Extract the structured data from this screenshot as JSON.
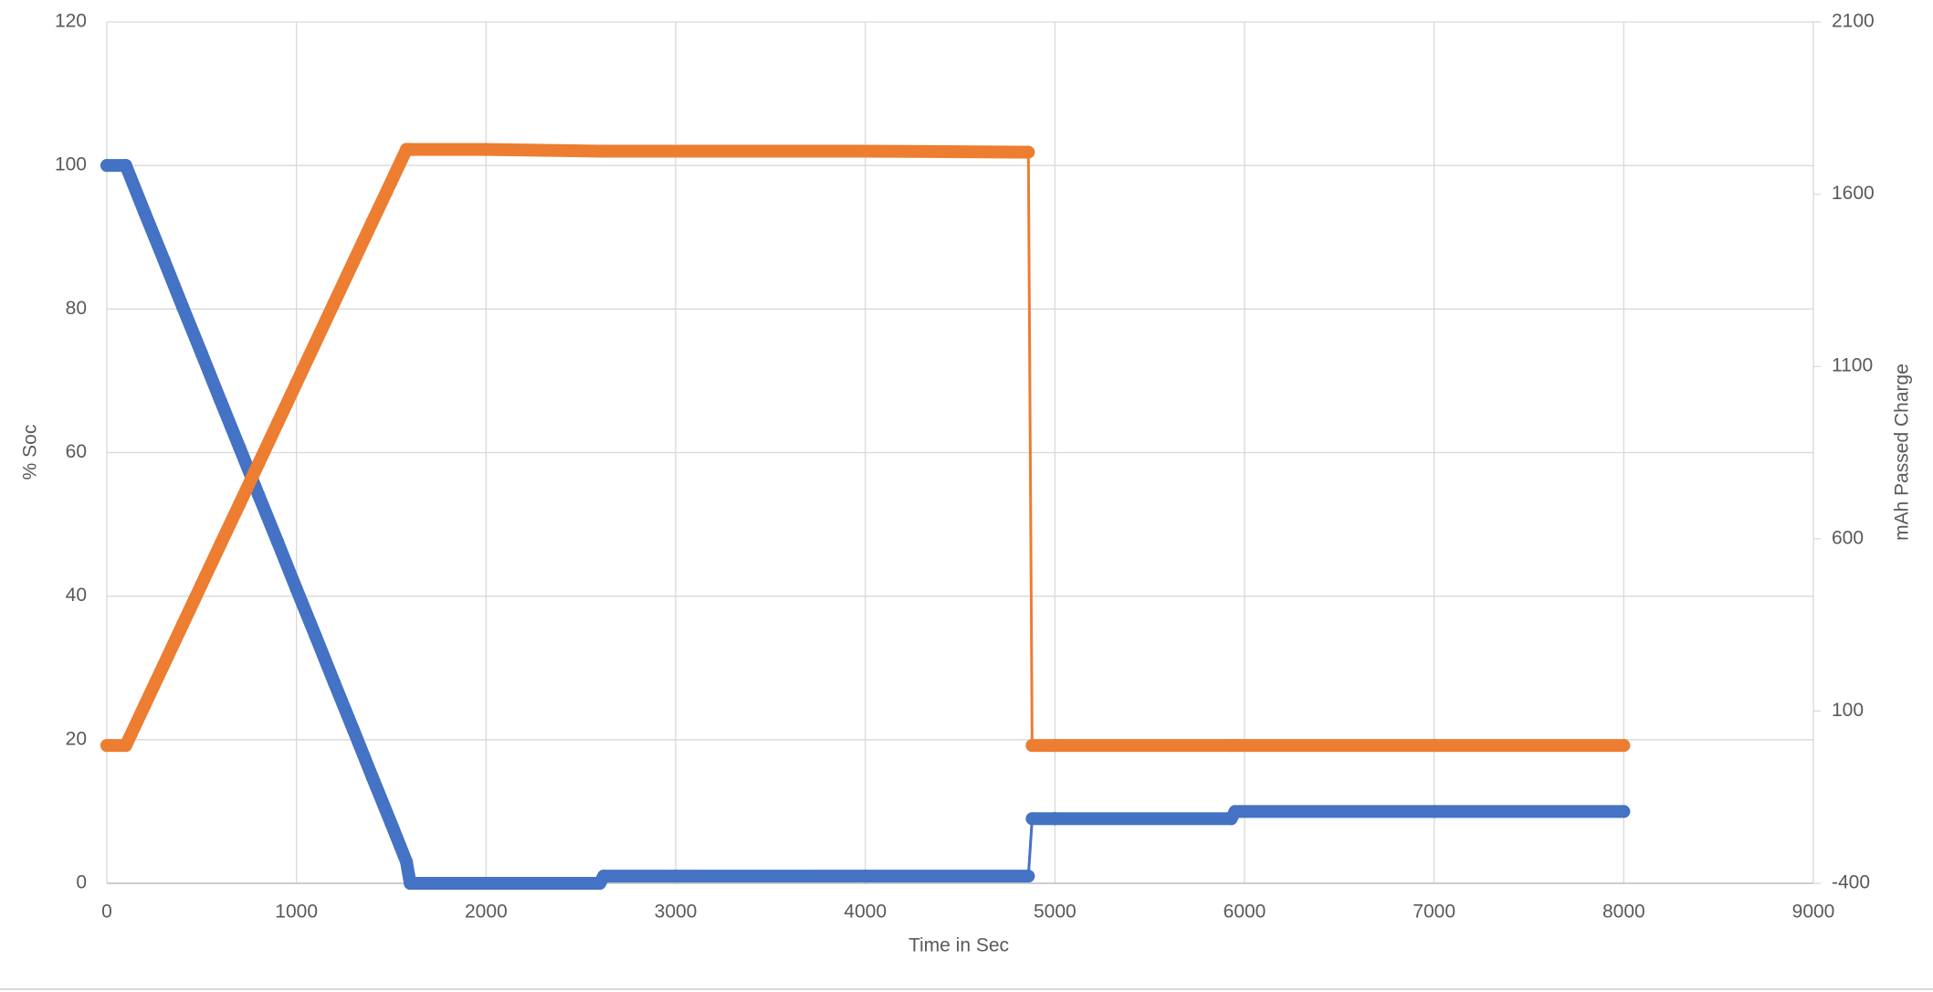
{
  "chart_data": {
    "type": "line",
    "xlabel": "Time in Sec",
    "ylabel": "% Soc",
    "y2label": "mAh Passed Charge",
    "x": [
      0,
      100,
      200,
      300,
      400,
      500,
      600,
      700,
      800,
      900,
      1000,
      1100,
      1200,
      1300,
      1400,
      1500,
      1580,
      1600,
      2000,
      2600,
      2620,
      3000,
      4000,
      4860,
      4880,
      5000,
      5930,
      5950,
      7000,
      8000
    ],
    "series": [
      {
        "color": "#4472c4",
        "axis": "y",
        "values": [
          100,
          100,
          93.4,
          86.9,
          80.3,
          73.8,
          67.2,
          60.7,
          54.1,
          47.6,
          41,
          34.5,
          27.9,
          21.4,
          14.8,
          8.3,
          3,
          0,
          0,
          0,
          1,
          1,
          1,
          1,
          9,
          9,
          9,
          10,
          10,
          10
        ]
      },
      {
        "color": "#ed7d31",
        "axis": "y2",
        "values": [
          0,
          0,
          117,
          234,
          351,
          468,
          585,
          701,
          818,
          935,
          1052,
          1169,
          1286,
          1403,
          1520,
          1636,
          1730,
          1730,
          1730,
          1725,
          1725,
          1725,
          1725,
          1722,
          0,
          0,
          0,
          0,
          0,
          0
        ]
      }
    ],
    "xlim": [
      0,
      9000
    ],
    "xticks": [
      0,
      1000,
      2000,
      3000,
      4000,
      5000,
      6000,
      7000,
      8000,
      9000
    ],
    "ylim": [
      0,
      120
    ],
    "yticks": [
      0,
      20,
      40,
      60,
      80,
      100,
      120
    ],
    "y2lim": [
      -400,
      2100
    ],
    "y2ticks": [
      -400,
      100,
      600,
      1100,
      1600,
      2100
    ],
    "grid": true
  }
}
